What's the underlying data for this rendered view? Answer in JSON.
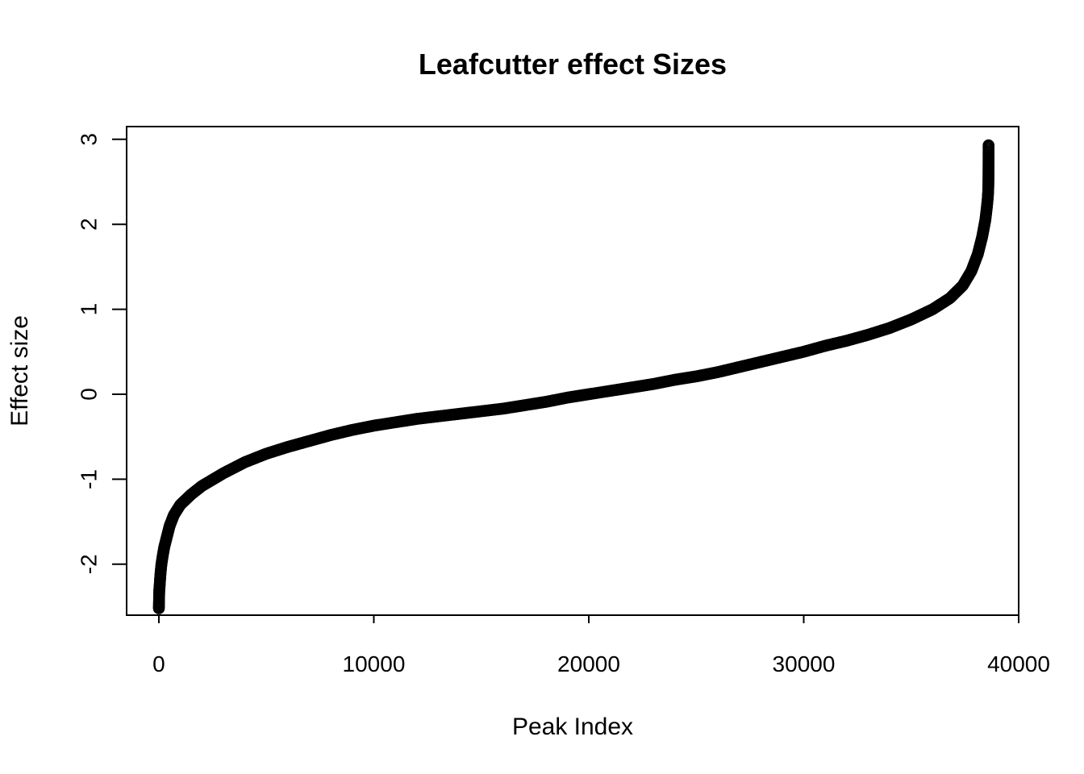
{
  "chart_data": {
    "type": "scatter",
    "title": "Leafcutter effect Sizes",
    "xlabel": "Peak Index",
    "ylabel": "Effect size",
    "xlim": [
      -1500,
      40000
    ],
    "ylim": [
      -2.6,
      3.15
    ],
    "xticks": [
      0,
      10000,
      20000,
      30000,
      40000
    ],
    "xtick_labels": [
      "0",
      "10000",
      "20000",
      "30000",
      "40000"
    ],
    "yticks": [
      -2,
      -1,
      0,
      1,
      2,
      3
    ],
    "ytick_labels": [
      "-2",
      "-1",
      "0",
      "1",
      "2",
      "3"
    ],
    "marker": "open-circle",
    "n_points": 38600,
    "points": [
      [
        1,
        -2.52
      ],
      [
        2,
        -2.5
      ],
      [
        5,
        -2.45
      ],
      [
        10,
        -2.4
      ],
      [
        20,
        -2.3
      ],
      [
        30,
        -2.28
      ],
      [
        50,
        -2.2
      ],
      [
        80,
        -2.1
      ],
      [
        120,
        -2.0
      ],
      [
        180,
        -1.9
      ],
      [
        250,
        -1.8
      ],
      [
        350,
        -1.7
      ],
      [
        500,
        -1.55
      ],
      [
        700,
        -1.42
      ],
      [
        1000,
        -1.3
      ],
      [
        1500,
        -1.18
      ],
      [
        2000,
        -1.08
      ],
      [
        3000,
        -0.93
      ],
      [
        4000,
        -0.8
      ],
      [
        5000,
        -0.7
      ],
      [
        6000,
        -0.62
      ],
      [
        7000,
        -0.55
      ],
      [
        8000,
        -0.48
      ],
      [
        9000,
        -0.42
      ],
      [
        10000,
        -0.37
      ],
      [
        11000,
        -0.33
      ],
      [
        12000,
        -0.29
      ],
      [
        13000,
        -0.26
      ],
      [
        14000,
        -0.23
      ],
      [
        15000,
        -0.2
      ],
      [
        16000,
        -0.17
      ],
      [
        17000,
        -0.13
      ],
      [
        18000,
        -0.09
      ],
      [
        19000,
        -0.04
      ],
      [
        20000,
        0.0
      ],
      [
        21000,
        0.04
      ],
      [
        22000,
        0.08
      ],
      [
        23000,
        0.12
      ],
      [
        24000,
        0.17
      ],
      [
        25000,
        0.21
      ],
      [
        26000,
        0.26
      ],
      [
        27000,
        0.32
      ],
      [
        28000,
        0.38
      ],
      [
        29000,
        0.44
      ],
      [
        30000,
        0.5
      ],
      [
        31000,
        0.57
      ],
      [
        32000,
        0.63
      ],
      [
        33000,
        0.7
      ],
      [
        34000,
        0.78
      ],
      [
        35000,
        0.88
      ],
      [
        36000,
        1.0
      ],
      [
        36800,
        1.13
      ],
      [
        37400,
        1.28
      ],
      [
        37800,
        1.45
      ],
      [
        38100,
        1.65
      ],
      [
        38300,
        1.85
      ],
      [
        38450,
        2.05
      ],
      [
        38520,
        2.2
      ],
      [
        38560,
        2.3
      ],
      [
        38580,
        2.38
      ],
      [
        38590,
        2.45
      ],
      [
        38595,
        2.55
      ],
      [
        38598,
        2.75
      ],
      [
        38600,
        2.93
      ]
    ],
    "grid": false,
    "legend": "none"
  }
}
